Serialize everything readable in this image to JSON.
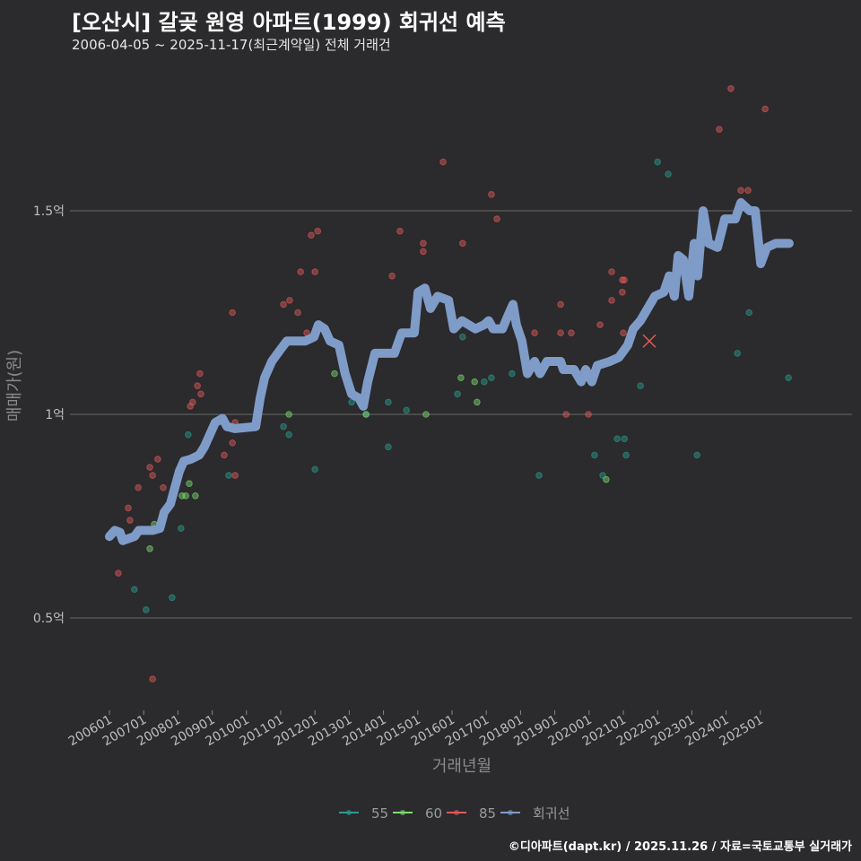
{
  "header": {
    "title": "[오산시] 갈곶 원영 아파트(1999) 회귀선 예측",
    "subtitle": "2006-04-05 ~ 2025-11-17(최근계약일) 전체 거래건"
  },
  "footer": "©디아파트(dapt.kr) / 2025.11.26 / 자료=국토교통부 실거래가",
  "chart_data": {
    "type": "scatter",
    "title": "[오산시] 갈곶 원영 아파트(1999) 회귀선 예측",
    "xlabel": "거래년월",
    "ylabel": "매매가(원)",
    "ylim": [
      0.28,
      1.85
    ],
    "xlim": [
      2005.9,
      2026.0
    ],
    "yticks": [
      {
        "v": 0.5,
        "label": "0.5억"
      },
      {
        "v": 1,
        "label": "1억"
      },
      {
        "v": 1.5,
        "label": "1.5억"
      }
    ],
    "xticks": [
      "200601",
      "200701",
      "200801",
      "200901",
      "201001",
      "201101",
      "201201",
      "201301",
      "201401",
      "201501",
      "201601",
      "201701",
      "201801",
      "201901",
      "202001",
      "202101",
      "202201",
      "202301",
      "202401",
      "202501"
    ],
    "grid": true,
    "legend_position": "bottom",
    "colors": {
      "55": "#2a9d8f",
      "60": "#7ddc6f",
      "85": "#e05a5a",
      "회귀선": "#7f9cc9"
    },
    "legend": [
      "55",
      "60",
      "85",
      "회귀선"
    ],
    "series": [
      {
        "name": "55",
        "points": [
          [
            2006.73,
            0.57
          ],
          [
            2007.07,
            0.52
          ],
          [
            2007.83,
            0.55
          ],
          [
            2008.09,
            0.72
          ],
          [
            2008.3,
            0.95
          ],
          [
            2009.48,
            0.85
          ],
          [
            2011.08,
            0.97
          ],
          [
            2011.24,
            0.95
          ],
          [
            2012.0,
            0.865
          ],
          [
            2013.07,
            1.03
          ],
          [
            2013.49,
            1.0
          ],
          [
            2014.14,
            1.03
          ],
          [
            2014.14,
            0.92
          ],
          [
            2014.67,
            1.01
          ],
          [
            2016.16,
            1.05
          ],
          [
            2016.31,
            1.19
          ],
          [
            2016.94,
            1.08
          ],
          [
            2017.15,
            1.09
          ],
          [
            2017.75,
            1.1
          ],
          [
            2018.54,
            0.85
          ],
          [
            2020.16,
            0.9
          ],
          [
            2020.4,
            0.85
          ],
          [
            2020.82,
            0.94
          ],
          [
            2021.03,
            0.94
          ],
          [
            2021.08,
            0.9
          ],
          [
            2021.5,
            1.07
          ],
          [
            2022.0,
            1.62
          ],
          [
            2022.31,
            1.59
          ],
          [
            2023.15,
            0.9
          ],
          [
            2024.33,
            1.15
          ],
          [
            2024.67,
            1.25
          ],
          [
            2025.82,
            1.09
          ]
        ]
      },
      {
        "name": "60",
        "points": [
          [
            2007.18,
            0.67
          ],
          [
            2007.31,
            0.73
          ],
          [
            2008.12,
            0.8
          ],
          [
            2008.23,
            0.8
          ],
          [
            2008.33,
            0.83
          ],
          [
            2008.51,
            0.8
          ],
          [
            2011.24,
            1.0
          ],
          [
            2012.57,
            1.1
          ],
          [
            2013.49,
            1.0
          ],
          [
            2015.24,
            1.0
          ],
          [
            2016.26,
            1.09
          ],
          [
            2016.66,
            1.08
          ],
          [
            2016.73,
            1.03
          ],
          [
            2020.5,
            0.84
          ]
        ]
      },
      {
        "name": "85",
        "points": [
          [
            2006.26,
            0.61
          ],
          [
            2006.55,
            0.77
          ],
          [
            2006.6,
            0.74
          ],
          [
            2006.84,
            0.82
          ],
          [
            2007.18,
            0.87
          ],
          [
            2007.26,
            0.85
          ],
          [
            2007.41,
            0.89
          ],
          [
            2007.57,
            0.82
          ],
          [
            2007.26,
            0.35
          ],
          [
            2008.36,
            1.02
          ],
          [
            2008.43,
            1.03
          ],
          [
            2008.57,
            1.07
          ],
          [
            2008.64,
            1.1
          ],
          [
            2008.67,
            1.05
          ],
          [
            2009.35,
            0.9
          ],
          [
            2009.59,
            1.25
          ],
          [
            2009.59,
            0.93
          ],
          [
            2009.67,
            0.98
          ],
          [
            2009.67,
            0.85
          ],
          [
            2011.08,
            1.27
          ],
          [
            2011.26,
            1.28
          ],
          [
            2011.5,
            1.25
          ],
          [
            2011.58,
            1.35
          ],
          [
            2011.76,
            1.2
          ],
          [
            2011.89,
            1.44
          ],
          [
            2012.0,
            1.35
          ],
          [
            2012.08,
            1.45
          ],
          [
            2014.25,
            1.34
          ],
          [
            2014.48,
            1.45
          ],
          [
            2015.16,
            1.42
          ],
          [
            2015.16,
            1.4
          ],
          [
            2015.74,
            1.62
          ],
          [
            2016.31,
            1.42
          ],
          [
            2017.15,
            1.54
          ],
          [
            2017.31,
            1.48
          ],
          [
            2018.41,
            1.2
          ],
          [
            2019.17,
            1.27
          ],
          [
            2019.17,
            1.2
          ],
          [
            2019.33,
            1.0
          ],
          [
            2019.48,
            1.2
          ],
          [
            2019.98,
            1.0
          ],
          [
            2020.32,
            1.22
          ],
          [
            2020.66,
            1.35
          ],
          [
            2020.66,
            1.28
          ],
          [
            2020.97,
            1.33
          ],
          [
            2021.03,
            1.33
          ],
          [
            2020.97,
            1.3
          ],
          [
            2021.0,
            1.2
          ],
          [
            2023.8,
            1.7
          ],
          [
            2024.14,
            1.8
          ],
          [
            2024.43,
            1.55
          ],
          [
            2024.64,
            1.55
          ],
          [
            2025.14,
            1.75
          ]
        ]
      },
      {
        "name": "85-latest",
        "marker": "x",
        "points": [
          [
            2021.76,
            1.18
          ]
        ]
      },
      {
        "name": "회귀선",
        "type": "line",
        "points": [
          [
            2006.0,
            0.7
          ],
          [
            2006.16,
            0.715
          ],
          [
            2006.31,
            0.71
          ],
          [
            2006.39,
            0.69
          ],
          [
            2006.73,
            0.7
          ],
          [
            2006.86,
            0.715
          ],
          [
            2007.26,
            0.715
          ],
          [
            2007.47,
            0.72
          ],
          [
            2007.6,
            0.76
          ],
          [
            2007.78,
            0.78
          ],
          [
            2007.91,
            0.82
          ],
          [
            2008.04,
            0.86
          ],
          [
            2008.17,
            0.885
          ],
          [
            2008.38,
            0.89
          ],
          [
            2008.62,
            0.9
          ],
          [
            2008.77,
            0.92
          ],
          [
            2008.93,
            0.95
          ],
          [
            2009.09,
            0.98
          ],
          [
            2009.3,
            0.99
          ],
          [
            2009.43,
            0.97
          ],
          [
            2009.66,
            0.965
          ],
          [
            2010.27,
            0.97
          ],
          [
            2010.4,
            1.04
          ],
          [
            2010.53,
            1.09
          ],
          [
            2010.74,
            1.13
          ],
          [
            2011.0,
            1.16
          ],
          [
            2011.18,
            1.18
          ],
          [
            2011.71,
            1.18
          ],
          [
            2011.97,
            1.19
          ],
          [
            2012.1,
            1.22
          ],
          [
            2012.28,
            1.21
          ],
          [
            2012.44,
            1.18
          ],
          [
            2012.7,
            1.17
          ],
          [
            2012.88,
            1.1
          ],
          [
            2013.07,
            1.05
          ],
          [
            2013.28,
            1.04
          ],
          [
            2013.41,
            1.02
          ],
          [
            2013.54,
            1.08
          ],
          [
            2013.75,
            1.15
          ],
          [
            2014.32,
            1.15
          ],
          [
            2014.53,
            1.2
          ],
          [
            2014.9,
            1.2
          ],
          [
            2015.01,
            1.3
          ],
          [
            2015.21,
            1.31
          ],
          [
            2015.37,
            1.26
          ],
          [
            2015.58,
            1.29
          ],
          [
            2015.9,
            1.28
          ],
          [
            2016.05,
            1.21
          ],
          [
            2016.29,
            1.23
          ],
          [
            2016.68,
            1.21
          ],
          [
            2016.94,
            1.22
          ],
          [
            2017.07,
            1.23
          ],
          [
            2017.2,
            1.21
          ],
          [
            2017.47,
            1.21
          ],
          [
            2017.62,
            1.24
          ],
          [
            2017.78,
            1.27
          ],
          [
            2017.88,
            1.22
          ],
          [
            2018.04,
            1.18
          ],
          [
            2018.2,
            1.1
          ],
          [
            2018.41,
            1.13
          ],
          [
            2018.57,
            1.1
          ],
          [
            2018.77,
            1.13
          ],
          [
            2019.17,
            1.13
          ],
          [
            2019.25,
            1.11
          ],
          [
            2019.56,
            1.11
          ],
          [
            2019.77,
            1.08
          ],
          [
            2019.9,
            1.11
          ],
          [
            2020.08,
            1.08
          ],
          [
            2020.24,
            1.12
          ],
          [
            2020.61,
            1.13
          ],
          [
            2020.87,
            1.14
          ],
          [
            2021.13,
            1.17
          ],
          [
            2021.29,
            1.21
          ],
          [
            2021.5,
            1.23
          ],
          [
            2021.71,
            1.26
          ],
          [
            2021.92,
            1.29
          ],
          [
            2022.18,
            1.3
          ],
          [
            2022.34,
            1.34
          ],
          [
            2022.49,
            1.29
          ],
          [
            2022.6,
            1.39
          ],
          [
            2022.75,
            1.38
          ],
          [
            2022.91,
            1.29
          ],
          [
            2023.07,
            1.42
          ],
          [
            2023.17,
            1.34
          ],
          [
            2023.33,
            1.5
          ],
          [
            2023.49,
            1.42
          ],
          [
            2023.75,
            1.41
          ],
          [
            2023.96,
            1.48
          ],
          [
            2024.27,
            1.48
          ],
          [
            2024.43,
            1.52
          ],
          [
            2024.69,
            1.5
          ],
          [
            2024.85,
            1.5
          ],
          [
            2025.01,
            1.37
          ],
          [
            2025.19,
            1.41
          ],
          [
            2025.45,
            1.42
          ],
          [
            2025.84,
            1.42
          ]
        ]
      }
    ]
  }
}
